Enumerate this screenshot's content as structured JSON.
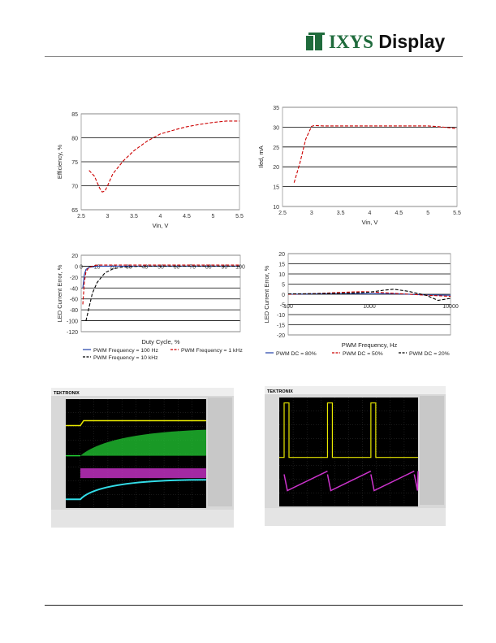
{
  "header": {
    "logo_brand": "IXYS",
    "logo_product": "Display"
  },
  "chart_data": [
    {
      "type": "line",
      "ylabel": "Efficiency, %",
      "xlabel": "Vin, V",
      "xlim": [
        2.5,
        5.5
      ],
      "ylim": [
        65,
        85
      ],
      "xticks": [
        "2.5",
        "3",
        "3.5",
        "4",
        "4.5",
        "5",
        "5.5"
      ],
      "yticks": [
        "85",
        "80",
        "75",
        "70",
        "65"
      ],
      "grid": "horizontal",
      "series": [
        {
          "color": "#cc0000",
          "dash": true,
          "x": [
            2.65,
            2.75,
            2.85,
            2.9,
            2.95,
            3.0,
            3.1,
            3.3,
            3.5,
            3.75,
            4.0,
            4.25,
            4.5,
            4.75,
            5.0,
            5.25,
            5.5
          ],
          "y": [
            73.2,
            72.0,
            69.5,
            68.7,
            68.9,
            70.0,
            72.5,
            75.2,
            77.3,
            79.3,
            80.8,
            81.6,
            82.3,
            82.8,
            83.2,
            83.5,
            83.5
          ]
        }
      ]
    },
    {
      "type": "line",
      "ylabel": "Iled, mA",
      "xlabel": "Vin, V",
      "xlim": [
        2.5,
        5.5
      ],
      "ylim": [
        10,
        35
      ],
      "xticks": [
        "2.5",
        "3",
        "3.5",
        "4",
        "4.5",
        "5",
        "5.5"
      ],
      "yticks": [
        "35",
        "30",
        "25",
        "20",
        "15",
        "10"
      ],
      "grid": "horizontal",
      "series": [
        {
          "color": "#cc0000",
          "dash": true,
          "x": [
            2.7,
            2.8,
            2.9,
            3.0,
            3.05,
            3.2,
            3.5,
            4.0,
            4.5,
            5.0,
            5.2,
            5.4,
            5.5
          ],
          "y": [
            16,
            21,
            27,
            30.2,
            30.4,
            30.3,
            30.3,
            30.3,
            30.3,
            30.3,
            30.1,
            29.8,
            29.6
          ]
        }
      ]
    },
    {
      "type": "line",
      "ylabel": "LED Current Error, %",
      "xlabel": "Duty Cycle, %",
      "xlim": [
        0,
        100
      ],
      "ylim": [
        -120,
        20
      ],
      "xticks": [
        "0",
        "10",
        "20",
        "30",
        "40",
        "50",
        "60",
        "70",
        "80",
        "90",
        "100"
      ],
      "yticks": [
        "20",
        "0",
        "-20",
        "-40",
        "-60",
        "-80",
        "-100",
        "-120"
      ],
      "grid": "horizontal",
      "legend": "bottom",
      "series": [
        {
          "name": "PWM Frequency = 100 Hz",
          "color": "#1f3fa8",
          "dash": false,
          "x": [
            1,
            2,
            3,
            5,
            8,
            10,
            20,
            40,
            60,
            80,
            100
          ],
          "y": [
            -40,
            -15,
            -6,
            -2,
            -1,
            0,
            0,
            0,
            0,
            0,
            0
          ]
        },
        {
          "name": "PWM Frequency = 1 kHz",
          "color": "#cc0000",
          "dash": true,
          "x": [
            1,
            2,
            3,
            5,
            8,
            10,
            20,
            40,
            60,
            80,
            100
          ],
          "y": [
            -70,
            -30,
            -10,
            -2,
            1,
            2,
            2,
            2,
            2,
            2,
            2
          ]
        },
        {
          "name": "PWM Frequency = 10 kHz",
          "color": "#000000",
          "dash": true,
          "x": [
            3,
            5,
            7,
            10,
            15,
            20,
            25,
            30,
            40,
            60,
            100
          ],
          "y": [
            -100,
            -75,
            -50,
            -30,
            -12,
            -5,
            -2,
            -1,
            0,
            0,
            0
          ]
        }
      ]
    },
    {
      "type": "line",
      "ylabel": "LED Current Error, %",
      "xlabel": "PWM Frequency, Hz",
      "xscale": "log",
      "xlim": [
        100,
        10000
      ],
      "ylim": [
        -20,
        20
      ],
      "xticks": [
        "100",
        "1000",
        "10000"
      ],
      "yticks": [
        "20",
        "15",
        "10",
        "5",
        "0",
        "-5",
        "-10",
        "-15",
        "-20"
      ],
      "grid": "horizontal",
      "legend": "bottom",
      "series": [
        {
          "name": "PWM DC = 80%",
          "color": "#1f3fa8",
          "dash": false,
          "x": [
            100,
            200,
            500,
            1000,
            2000,
            5000,
            10000
          ],
          "y": [
            0,
            0.2,
            0.4,
            0.3,
            0.3,
            -0.3,
            -0.5
          ]
        },
        {
          "name": "PWM DC = 50%",
          "color": "#cc0000",
          "dash": true,
          "x": [
            100,
            200,
            500,
            800,
            1000,
            2000,
            5000,
            10000
          ],
          "y": [
            0,
            0.3,
            1.0,
            1.3,
            1.2,
            0.5,
            -0.5,
            -1.0
          ]
        },
        {
          "name": "PWM DC = 20%",
          "color": "#000000",
          "dash": true,
          "x": [
            100,
            200,
            500,
            1000,
            1500,
            2000,
            3000,
            5000,
            7000,
            10000
          ],
          "y": [
            0.2,
            0.3,
            0.5,
            1.0,
            2.0,
            2.5,
            1.5,
            -0.5,
            -3.0,
            -2.0
          ]
        }
      ]
    }
  ],
  "scopes": [
    {
      "brand": "TEKTRONIX",
      "trace_colors": [
        "#e8e800",
        "#22cc33",
        "#cc33cc",
        "#33dde8"
      ]
    },
    {
      "brand": "TEKTRONIX",
      "trace_colors": [
        "#e8e800",
        "#cc33cc"
      ]
    }
  ]
}
